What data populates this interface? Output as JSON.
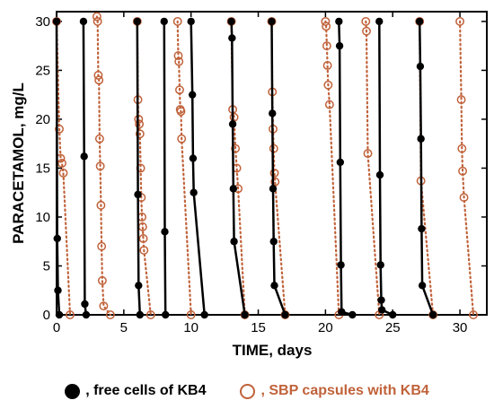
{
  "chart_data": {
    "type": "line",
    "title": "",
    "xlabel": "TIME, days",
    "ylabel": "PARACETAMOL, mg/L",
    "xlim": [
      0,
      32
    ],
    "ylim": [
      0,
      31
    ],
    "xticks": [
      0,
      5,
      10,
      15,
      20,
      25,
      30
    ],
    "yticks": [
      0,
      5,
      10,
      15,
      20,
      25,
      30
    ],
    "grid": false,
    "legend": "bottom",
    "series": [
      {
        "name": "free cells of KB4",
        "marker": "filled-circle",
        "line": "solid",
        "color": "#000000",
        "segments": [
          [
            [
              0,
              30
            ],
            [
              0.05,
              7.8
            ],
            [
              0.1,
              2.5
            ],
            [
              0.2,
              0
            ]
          ],
          [
            [
              2,
              30
            ],
            [
              2.05,
              16.2
            ],
            [
              2.1,
              1.1
            ],
            [
              2.2,
              0
            ]
          ],
          [
            [
              6,
              30
            ],
            [
              6.05,
              12.3
            ],
            [
              6.1,
              3
            ],
            [
              6.2,
              0
            ]
          ],
          [
            [
              8,
              30
            ],
            [
              8.05,
              8.5
            ],
            [
              8.1,
              0
            ]
          ],
          [
            [
              10,
              30
            ],
            [
              10.1,
              22.5
            ],
            [
              10.15,
              16
            ],
            [
              10.2,
              12.5
            ],
            [
              11,
              0
            ]
          ],
          [
            [
              13,
              30
            ],
            [
              13.05,
              28.3
            ],
            [
              13.1,
              19.5
            ],
            [
              13.15,
              12.9
            ],
            [
              13.2,
              7.5
            ],
            [
              14,
              0
            ]
          ],
          [
            [
              16,
              30
            ],
            [
              16.05,
              20.6
            ],
            [
              16.1,
              12.9
            ],
            [
              16.15,
              7.5
            ],
            [
              16.2,
              3
            ],
            [
              17,
              0
            ]
          ],
          [
            [
              21,
              30
            ],
            [
              21.05,
              27.5
            ],
            [
              21.1,
              15.6
            ],
            [
              21.15,
              5.1
            ],
            [
              21.2,
              0.3
            ],
            [
              22,
              0
            ]
          ],
          [
            [
              24,
              30
            ],
            [
              24.05,
              14.3
            ],
            [
              24.1,
              5.1
            ],
            [
              24.15,
              1.5
            ],
            [
              24.2,
              0.5
            ],
            [
              25,
              0
            ]
          ],
          [
            [
              27,
              30
            ],
            [
              27.05,
              25.4
            ],
            [
              27.1,
              18
            ],
            [
              27.15,
              8.8
            ],
            [
              27.2,
              3
            ],
            [
              28,
              0
            ]
          ]
        ]
      },
      {
        "name": "SBP capsules with KB4",
        "marker": "open-circle",
        "line": "dotted",
        "color": "#c0623a",
        "segments": [
          [
            [
              0,
              30
            ],
            [
              0.2,
              19
            ],
            [
              0.3,
              16
            ],
            [
              0.4,
              15.5
            ],
            [
              0.5,
              14.5
            ],
            [
              1,
              0
            ]
          ],
          [
            [
              3,
              30.5
            ],
            [
              3.05,
              30
            ],
            [
              3.1,
              24.5
            ],
            [
              3.15,
              24
            ],
            [
              3.2,
              18
            ],
            [
              3.25,
              15.2
            ],
            [
              3.3,
              11.2
            ],
            [
              3.35,
              7
            ],
            [
              3.4,
              3.5
            ],
            [
              3.5,
              0.9
            ],
            [
              4,
              0
            ]
          ],
          [
            [
              6,
              30
            ],
            [
              6.05,
              22
            ],
            [
              6.1,
              20
            ],
            [
              6.15,
              19.5
            ],
            [
              6.2,
              18.5
            ],
            [
              6.25,
              15
            ],
            [
              6.3,
              12
            ],
            [
              6.35,
              10
            ],
            [
              6.4,
              9
            ],
            [
              6.45,
              7.8
            ],
            [
              6.5,
              6.6
            ],
            [
              7,
              0
            ]
          ],
          [
            [
              9,
              30
            ],
            [
              9.05,
              26.5
            ],
            [
              9.1,
              25.9
            ],
            [
              9.15,
              23
            ],
            [
              9.2,
              21
            ],
            [
              9.25,
              20.8
            ],
            [
              9.3,
              18
            ],
            [
              10,
              0
            ]
          ],
          [
            [
              13,
              30
            ],
            [
              13.1,
              21
            ],
            [
              13.2,
              20.2
            ],
            [
              13.3,
              17
            ],
            [
              13.4,
              15
            ],
            [
              13.5,
              12.9
            ],
            [
              14,
              0
            ]
          ],
          [
            [
              16,
              30
            ],
            [
              16.05,
              22.8
            ],
            [
              16.1,
              19
            ],
            [
              16.15,
              17
            ],
            [
              16.2,
              14.5
            ],
            [
              16.25,
              13.6
            ],
            [
              17,
              0
            ]
          ],
          [
            [
              20,
              30
            ],
            [
              20.05,
              29.5
            ],
            [
              20.1,
              27.5
            ],
            [
              20.15,
              25.5
            ],
            [
              20.2,
              23.5
            ],
            [
              20.3,
              21.5
            ],
            [
              21,
              0
            ]
          ],
          [
            [
              23,
              30
            ],
            [
              23.05,
              29
            ],
            [
              23.15,
              16.5
            ],
            [
              24,
              0
            ]
          ],
          [
            [
              27,
              30
            ],
            [
              27.1,
              13.7
            ],
            [
              28,
              0
            ]
          ],
          [
            [
              30,
              30
            ],
            [
              30.1,
              22
            ],
            [
              30.15,
              17
            ],
            [
              30.2,
              14.7
            ],
            [
              30.3,
              12
            ],
            [
              31,
              0
            ]
          ]
        ]
      }
    ]
  },
  "legend": {
    "free_label": ", free cells of KB4",
    "sbp_label": ", SBP capsules with KB4"
  }
}
